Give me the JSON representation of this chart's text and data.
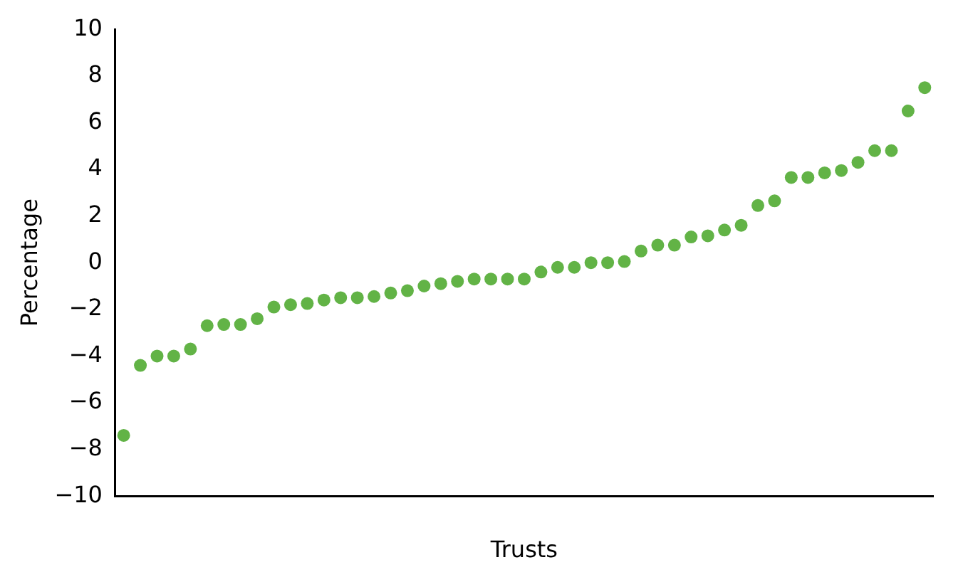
{
  "chart_data": {
    "type": "scatter",
    "xlabel": "Trusts",
    "ylabel": "Percentage",
    "categories": [
      null,
      null,
      null,
      null,
      null,
      null,
      null,
      null,
      null,
      null,
      null,
      null,
      null,
      null,
      null,
      null,
      null,
      null,
      null,
      null,
      null,
      null,
      null,
      null,
      null,
      null,
      null,
      null,
      null,
      null,
      null,
      null,
      null,
      null,
      null,
      null,
      null,
      null,
      null,
      null,
      null,
      null,
      null,
      null,
      null,
      null,
      null,
      null,
      null
    ],
    "series": [
      {
        "color": "#62b346",
        "values": [
          -7.4,
          -4.4,
          -4.0,
          -4.0,
          -3.7,
          -2.7,
          -2.65,
          -2.65,
          -2.4,
          -1.9,
          -1.8,
          -1.75,
          -1.6,
          -1.5,
          -1.5,
          -1.45,
          -1.3,
          -1.2,
          -1.0,
          -0.9,
          -0.8,
          -0.7,
          -0.7,
          -0.7,
          -0.7,
          -0.4,
          -0.2,
          -0.2,
          0.0,
          0.0,
          0.05,
          0.5,
          0.75,
          0.75,
          1.1,
          1.15,
          1.4,
          1.6,
          2.45,
          2.65,
          3.65,
          3.65,
          3.85,
          3.95,
          4.3,
          4.8,
          4.8,
          6.5,
          7.5
        ]
      }
    ],
    "ylim": [
      -10,
      10
    ],
    "yticks": [
      {
        "value": -10,
        "label": "−10"
      },
      {
        "value": -8,
        "label": "−8"
      },
      {
        "value": -6,
        "label": "−6"
      },
      {
        "value": -4,
        "label": "−4"
      },
      {
        "value": -2,
        "label": "−2"
      },
      0,
      2,
      4,
      6,
      8,
      10
    ],
    "marker": "circle",
    "grid": false,
    "legend": false
  }
}
